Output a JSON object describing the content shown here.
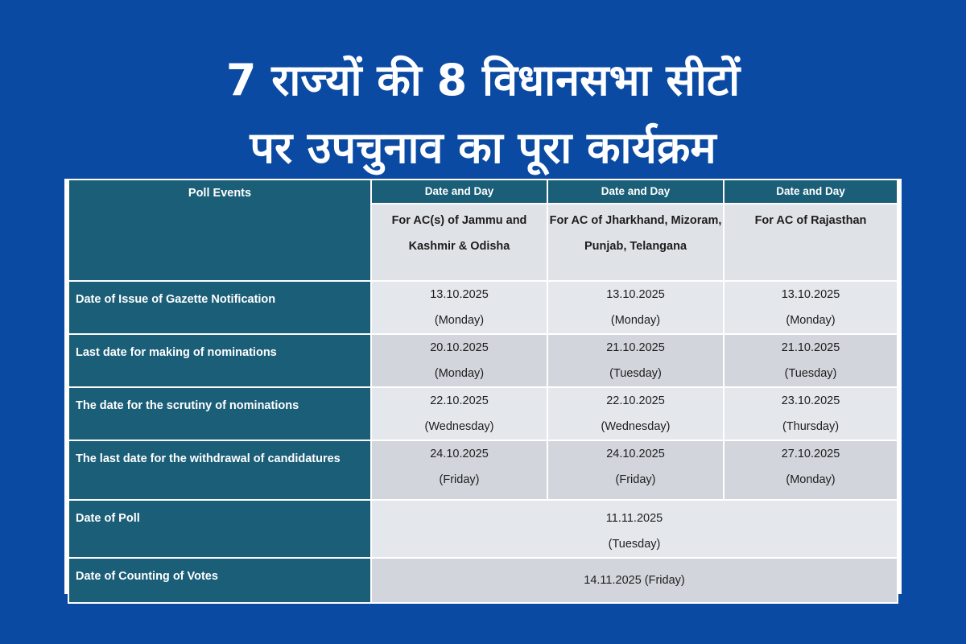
{
  "title": {
    "line1": "7 राज्यों की 8 विधानसभा सीटों",
    "line2": "पर उपचुनाव का पूरा कार्यक्रम"
  },
  "table": {
    "corner_label": "Poll Events",
    "column_header": "Date and Day",
    "columns": [
      "For AC(s) of Jammu and Kashmir & Odisha",
      "For AC of Jharkhand, Mizoram, Punjab, Telangana",
      "For AC of Rajasthan"
    ],
    "rows": [
      {
        "event": "Date of Issue of Gazette Notification",
        "cells": [
          {
            "date": "13.10.2025",
            "day": "(Monday)"
          },
          {
            "date": "13.10.2025",
            "day": "(Monday)"
          },
          {
            "date": "13.10.2025",
            "day": "(Monday)"
          }
        ]
      },
      {
        "event": "Last date for making of nominations",
        "cells": [
          {
            "date": "20.10.2025",
            "day": "(Monday)"
          },
          {
            "date": "21.10.2025",
            "day": "(Tuesday)"
          },
          {
            "date": "21.10.2025",
            "day": "(Tuesday)"
          }
        ]
      },
      {
        "event": "The date for the scrutiny of nominations",
        "cells": [
          {
            "date": "22.10.2025",
            "day": "(Wednesday)"
          },
          {
            "date": "22.10.2025",
            "day": "(Wednesday)"
          },
          {
            "date": "23.10.2025",
            "day": "(Thursday)"
          }
        ]
      },
      {
        "event": "The last date for the withdrawal of candidatures",
        "cells": [
          {
            "date": "24.10.2025",
            "day": "(Friday)"
          },
          {
            "date": "24.10.2025",
            "day": "(Friday)"
          },
          {
            "date": "27.10.2025",
            "day": "(Monday)"
          }
        ]
      }
    ],
    "poll": {
      "event": "Date of Poll",
      "date": "11.11.2025",
      "day": "(Tuesday)"
    },
    "counting": {
      "event": "Date of Counting of Votes",
      "value": "14.11.2025 (Friday)"
    }
  },
  "colors": {
    "background": "#0b4aa2",
    "header": "#1b5e78",
    "cell": "#e4e7ec"
  }
}
